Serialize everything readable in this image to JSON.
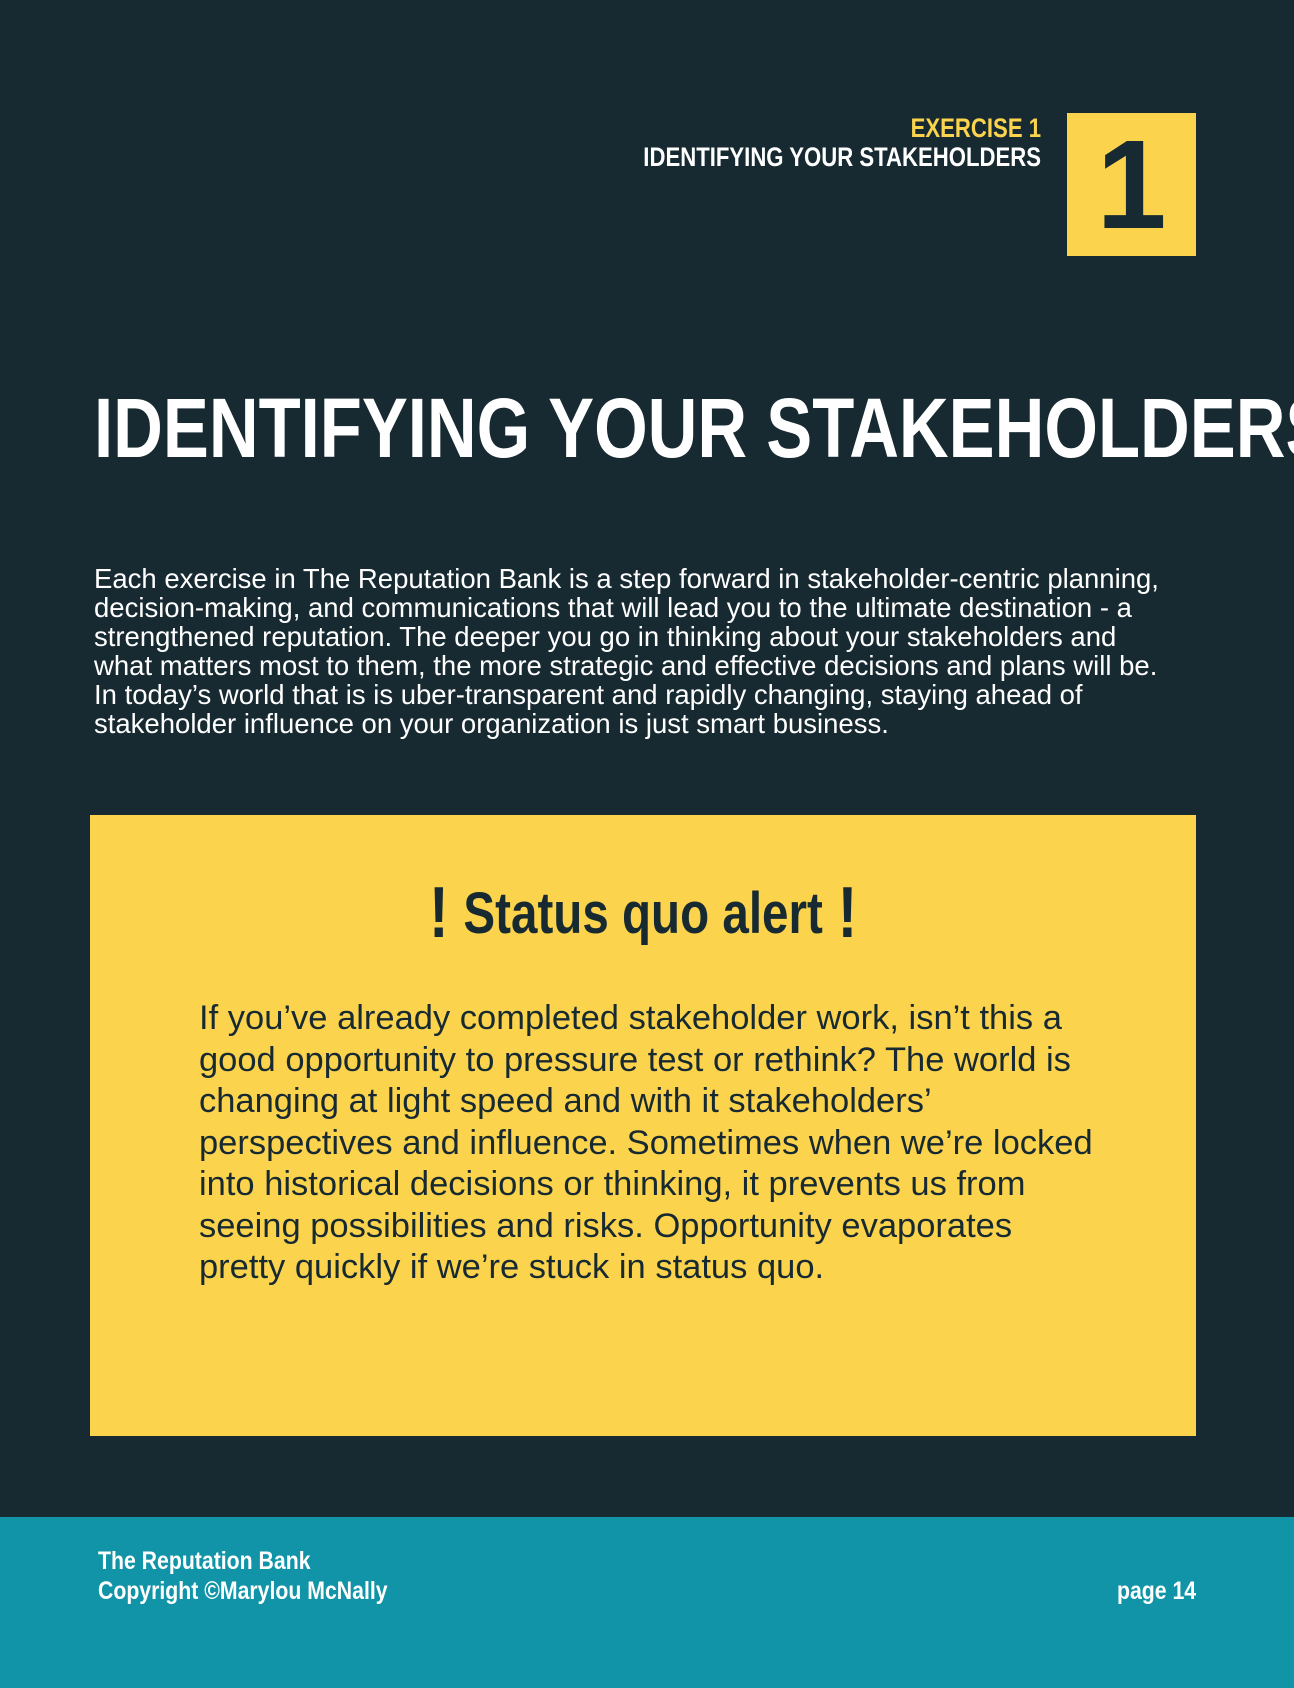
{
  "header": {
    "exercise_label": "EXERCISE 1",
    "exercise_title": "IDENTIFYING YOUR STAKEHOLDERS",
    "number": "1"
  },
  "main": {
    "title": "IDENTIFYING YOUR STAKEHOLDERS",
    "intro": "Each exercise in The Reputation Bank is a step forward in stakeholder-centric planning, decision-making, and communications that will lead you to the ultimate destination - a strengthened reputation. The deeper you go in thinking about your stakeholders and what matters most to them, the more strategic and effective decisions and plans will be. In today’s world that is is uber-transparent and rapidly changing, staying ahead of stakeholder influence on your organization is just smart business."
  },
  "alert": {
    "icon_left": "!",
    "heading": "Status quo alert",
    "icon_right": "!",
    "text": "If you’ve already completed stakeholder work, isn’t this a good opportunity to pressure test or rethink? The world is changing at light speed and with it stakeholders’ perspectives and influence. Sometimes when we’re locked into historical decisions or thinking, it prevents us from seeing possibilities and risks. Opportunity evaporates pretty quickly if we’re stuck in status quo."
  },
  "footer": {
    "book_title": "The Reputation Bank",
    "copyright": "Copyright ©Marylou McNally",
    "page_label": "page 14"
  },
  "colors": {
    "background": "#182a31",
    "accent": "#fcd34d",
    "footer": "#1194a8",
    "text_light": "#ffffff"
  }
}
